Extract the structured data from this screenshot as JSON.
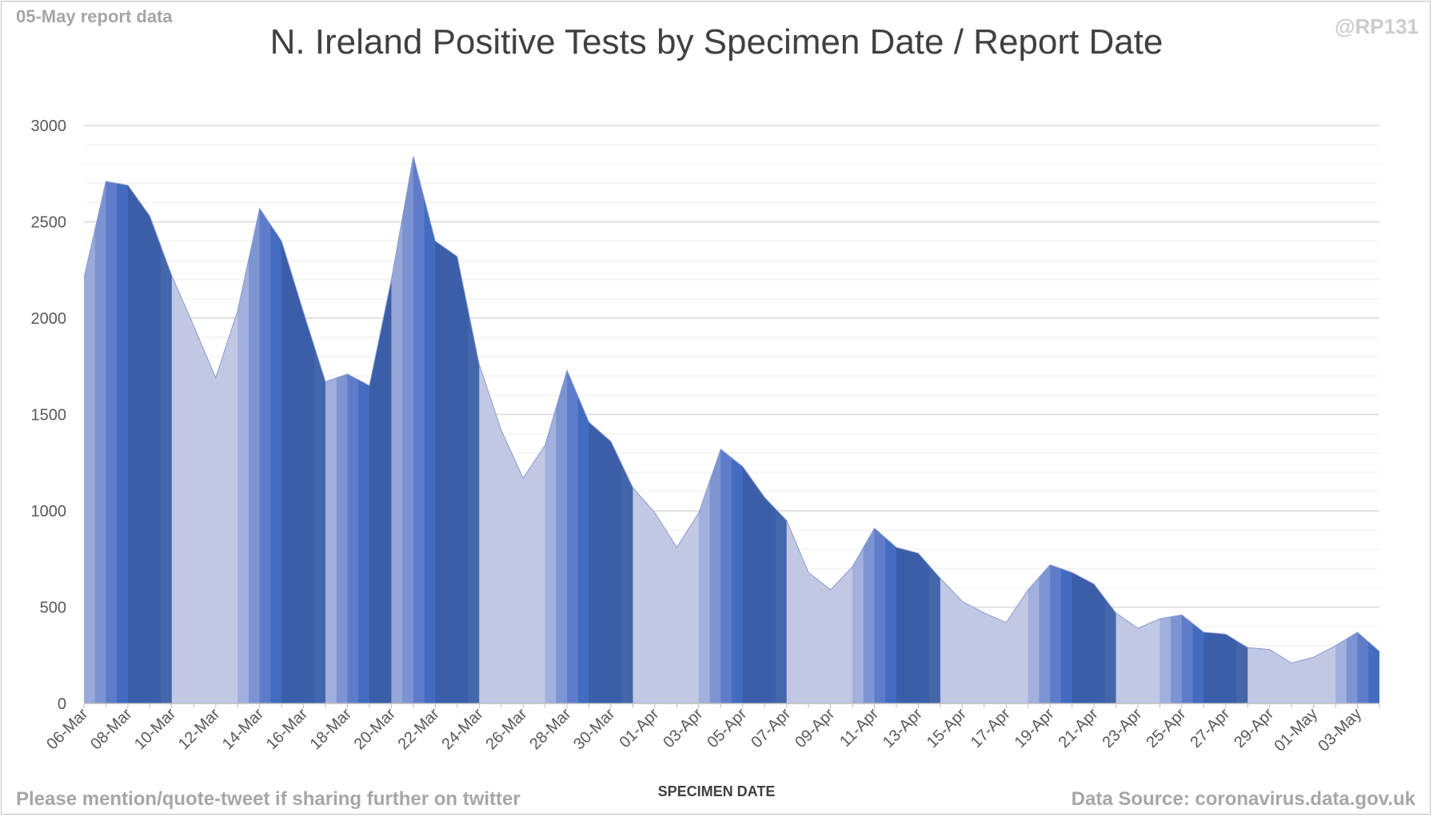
{
  "header": {
    "report_note": "05-May report data",
    "handle": "@RP131",
    "title": "N. Ireland Positive Tests by Specimen Date / Report Date"
  },
  "footer": {
    "share_note": "Please mention/quote-tweet if sharing further on twitter",
    "source_note": "Data Source: coronavirus.data.gov.uk"
  },
  "chart_data": {
    "type": "area",
    "title": "N. Ireland Positive Tests by Specimen Date / Report Date",
    "xlabel": "SPECIMEN DATE",
    "ylabel": "",
    "ylim": [
      0,
      3000
    ],
    "yticks": [
      0,
      500,
      1000,
      1500,
      2000,
      2500,
      3000
    ],
    "grid": "horizontal",
    "legend": "none",
    "x": [
      "06-Mar",
      "07-Mar",
      "08-Mar",
      "09-Mar",
      "10-Mar",
      "11-Mar",
      "12-Mar",
      "13-Mar",
      "14-Mar",
      "15-Mar",
      "16-Mar",
      "17-Mar",
      "18-Mar",
      "19-Mar",
      "20-Mar",
      "21-Mar",
      "22-Mar",
      "23-Mar",
      "24-Mar",
      "25-Mar",
      "26-Mar",
      "27-Mar",
      "28-Mar",
      "29-Mar",
      "30-Mar",
      "31-Mar",
      "01-Apr",
      "02-Apr",
      "03-Apr",
      "04-Apr",
      "05-Apr",
      "06-Apr",
      "07-Apr",
      "08-Apr",
      "09-Apr",
      "10-Apr",
      "11-Apr",
      "12-Apr",
      "13-Apr",
      "14-Apr",
      "15-Apr",
      "16-Apr",
      "17-Apr",
      "18-Apr",
      "19-Apr",
      "20-Apr",
      "21-Apr",
      "22-Apr",
      "23-Apr",
      "24-Apr",
      "25-Apr",
      "26-Apr",
      "27-Apr",
      "28-Apr",
      "29-Apr",
      "30-Apr",
      "01-May",
      "02-May",
      "03-May",
      "04-May"
    ],
    "xtick_labels": [
      "06-Mar",
      "08-Mar",
      "10-Mar",
      "12-Mar",
      "14-Mar",
      "16-Mar",
      "18-Mar",
      "20-Mar",
      "22-Mar",
      "24-Mar",
      "26-Mar",
      "28-Mar",
      "30-Mar",
      "01-Apr",
      "03-Apr",
      "05-Apr",
      "07-Apr",
      "09-Apr",
      "11-Apr",
      "13-Apr",
      "15-Apr",
      "17-Apr",
      "19-Apr",
      "21-Apr",
      "23-Apr",
      "25-Apr",
      "27-Apr",
      "29-Apr",
      "01-May",
      "03-May"
    ],
    "values": [
      2210,
      2710,
      2690,
      2530,
      2220,
      1960,
      1690,
      2040,
      2570,
      2400,
      2030,
      1670,
      1710,
      1650,
      2200,
      2840,
      2400,
      2320,
      1760,
      1420,
      1170,
      1340,
      1730,
      1460,
      1360,
      1120,
      990,
      810,
      990,
      1320,
      1230,
      1070,
      950,
      680,
      590,
      710,
      910,
      810,
      780,
      650,
      530,
      470,
      420,
      590,
      720,
      680,
      620,
      470,
      390,
      440,
      460,
      370,
      360,
      290,
      280,
      210,
      240,
      300,
      370,
      270
    ],
    "series_colors": [
      "#c0c8e4",
      "#9eaedb",
      "#7a91d0",
      "#5b7ac8",
      "#3f6abf",
      "#3a5da6"
    ]
  }
}
